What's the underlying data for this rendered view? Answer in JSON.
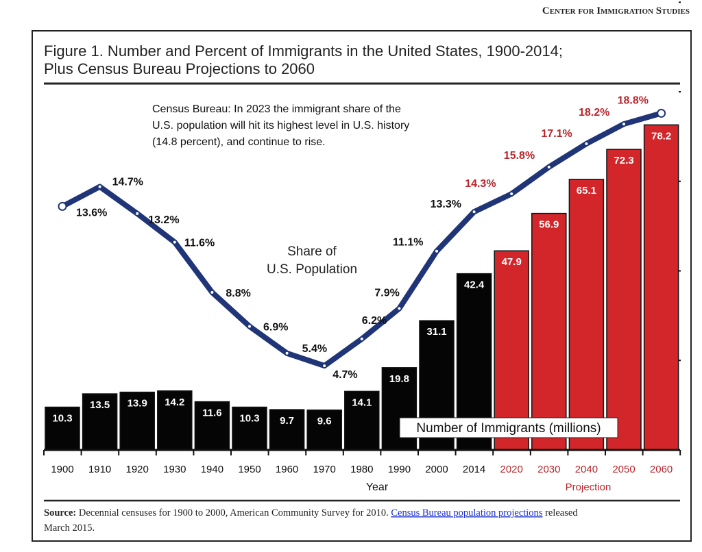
{
  "publisher": "Center for Immigration Studies",
  "chart_data": {
    "type": "bar+line",
    "title_line1": "Figure 1. Number and Percent of Immigrants in the United States, 1900-2014;",
    "title_line2": "Plus Census Bureau Projections to 2060",
    "categories": [
      "1900",
      "1910",
      "1920",
      "1930",
      "1940",
      "1950",
      "1960",
      "1970",
      "1980",
      "1990",
      "2000",
      "2014",
      "2020",
      "2030",
      "2040",
      "2050",
      "2060"
    ],
    "projection_start_index": 12,
    "bars": {
      "name": "Number of Immigrants (millions)",
      "values": [
        10.3,
        13.5,
        13.9,
        14.2,
        11.6,
        10.3,
        9.7,
        9.6,
        14.1,
        19.8,
        31.1,
        42.4,
        47.9,
        56.9,
        65.1,
        72.3,
        78.2
      ]
    },
    "line": {
      "name_line1": "Share of",
      "name_line2": "U.S. Population",
      "values": [
        13.6,
        14.7,
        13.2,
        11.6,
        8.8,
        6.9,
        5.4,
        4.7,
        6.2,
        7.9,
        11.1,
        13.3,
        14.3,
        15.8,
        17.1,
        18.2,
        18.8
      ],
      "labels": [
        "13.6%",
        "14.7%",
        "13.2%",
        "11.6%",
        "8.8%",
        "6.9%",
        "5.4%",
        "4.7%",
        "6.2%",
        "7.9%",
        "11.1%",
        "13.3%",
        "14.3%",
        "15.8%",
        "17.1%",
        "18.2%",
        "18.8%"
      ]
    },
    "xlabel": "Year",
    "projection_label": "Projection",
    "annotation": [
      "Census Bureau: In 2023 the immigrant share of the",
      "U.S. population will hit its highest level in U.S. history",
      "(14.8 percent), and continue to rise."
    ],
    "percent_axis_range": [
      0,
      25
    ],
    "colors": {
      "historical_bar": "#050505",
      "projection_bar": "#d3262a",
      "line": "#1f3577",
      "projection_text": "#b8262c"
    }
  },
  "source": {
    "label": "Source:",
    "text": " Decennial censuses for 1900 to 2000, American Community Survey for 2010. ",
    "link": "Census Bureau population projections",
    "after": " released",
    "line2": "March 2015."
  }
}
